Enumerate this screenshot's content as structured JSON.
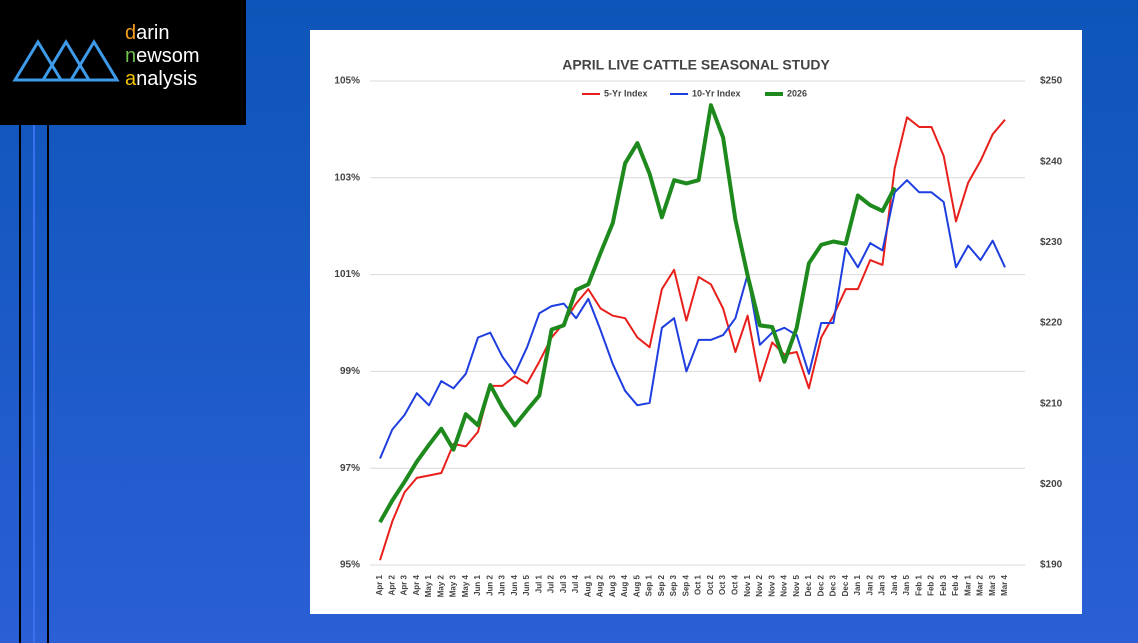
{
  "logo": {
    "lines": [
      "darin",
      "newsom",
      "analysis"
    ]
  },
  "chart_data": {
    "type": "line",
    "title": "APRIL LIVE CATTLE SEASONAL STUDY",
    "categories": [
      "Apr 1",
      "Apr 2",
      "Apr 3",
      "Apr 4",
      "May 1",
      "May 2",
      "May 3",
      "May 4",
      "Jun 1",
      "Jun 2",
      "Jun 3",
      "Jun 4",
      "Jun 5",
      "Jul 1",
      "Jul 2",
      "Jul 3",
      "Jul 4",
      "Aug 1",
      "Aug 2",
      "Aug 3",
      "Aug 4",
      "Aug 5",
      "Sep 1",
      "Sep 2",
      "Sep 3",
      "Sep 4",
      "Oct 1",
      "Oct 2",
      "Oct 3",
      "Oct 4",
      "Nov 1",
      "Nov 2",
      "Nov 3",
      "Nov 4",
      "Nov 5",
      "Dec 1",
      "Dec 2",
      "Dec 3",
      "Dec 4",
      "Jan 1",
      "Jan 2",
      "Jan 3",
      "Jan 4",
      "Jan 5",
      "Feb 1",
      "Feb 2",
      "Feb 3",
      "Feb 4",
      "Mar 1",
      "Mar 2",
      "Mar 3",
      "Mar 4"
    ],
    "series": [
      {
        "name": "5-Yr Index",
        "color": "#e8201c",
        "width": 2,
        "values": [
          95.1,
          95.9,
          96.5,
          96.8,
          96.85,
          96.9,
          97.5,
          97.45,
          97.75,
          98.7,
          98.7,
          98.9,
          98.75,
          99.2,
          99.7,
          100.0,
          100.4,
          100.7,
          100.3,
          100.15,
          100.1,
          99.7,
          99.5,
          100.7,
          101.1,
          100.05,
          100.95,
          100.8,
          100.3,
          99.4,
          100.15,
          98.8,
          99.6,
          99.35,
          99.4,
          98.65,
          99.7,
          100.15,
          100.7,
          100.7,
          101.3,
          101.2,
          103.2,
          104.25,
          104.05,
          104.05,
          103.45,
          102.1,
          102.9,
          103.35,
          103.9,
          104.2
        ]
      },
      {
        "name": "10-Yr Index",
        "color": "#1f3ee0",
        "width": 2,
        "values": [
          97.2,
          97.8,
          98.1,
          98.55,
          98.3,
          98.8,
          98.65,
          98.95,
          99.7,
          99.8,
          99.3,
          98.95,
          99.5,
          100.2,
          100.35,
          100.4,
          100.1,
          100.5,
          99.85,
          99.15,
          98.6,
          98.3,
          98.35,
          99.9,
          100.1,
          99.0,
          99.65,
          99.65,
          99.75,
          100.1,
          101.0,
          99.55,
          99.8,
          99.9,
          99.75,
          98.95,
          100.0,
          100.0,
          101.55,
          101.15,
          101.65,
          101.5,
          102.7,
          102.95,
          102.7,
          102.7,
          102.5,
          101.15,
          101.6,
          101.3,
          101.7,
          101.15
        ]
      },
      {
        "name": "2026",
        "color": "#1e8a1e",
        "width": 4,
        "axis": "y2",
        "values": [
          195.3,
          198,
          200.3,
          202.8,
          204.9,
          206.9,
          204.3,
          208.7,
          207.3,
          212.3,
          209.5,
          207.3,
          209.2,
          211,
          219.2,
          219.7,
          224.1,
          224.8,
          228.7,
          232.4,
          239.8,
          242.3,
          238.5,
          233.1,
          237.7,
          237.3,
          237.7,
          247,
          243,
          232.8,
          225.9,
          219.7,
          219.5,
          215.2,
          219.4,
          227.4,
          229.7,
          230.1,
          229.8,
          235.8,
          234.6,
          233.9,
          236.8,
          null,
          null,
          null,
          null,
          null,
          null,
          null,
          null,
          null
        ]
      }
    ],
    "ylim": [
      95,
      105
    ],
    "yticks": [
      {
        "value": 95,
        "label": "95%"
      },
      {
        "value": 97,
        "label": "97%"
      },
      {
        "value": 99,
        "label": "99%"
      },
      {
        "value": 101,
        "label": "101%"
      },
      {
        "value": 103,
        "label": "103%"
      },
      {
        "value": 105,
        "label": "105%"
      }
    ],
    "y2lim": [
      190,
      250
    ],
    "y2ticks": [
      {
        "value": 190,
        "label": "$190"
      },
      {
        "value": 200,
        "label": "$200"
      },
      {
        "value": 210,
        "label": "$210"
      },
      {
        "value": 220,
        "label": "$220"
      },
      {
        "value": 230,
        "label": "$230"
      },
      {
        "value": 240,
        "label": "$240"
      },
      {
        "value": 250,
        "label": "$250"
      }
    ],
    "grid": true,
    "legend": "top"
  }
}
